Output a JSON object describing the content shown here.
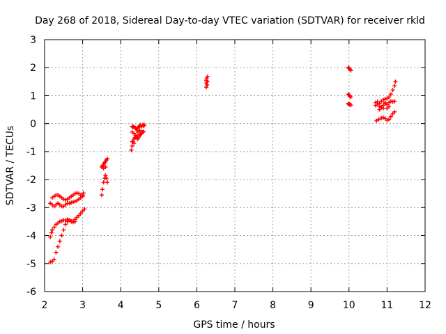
{
  "chart_data": {
    "type": "scatter",
    "title": "Day 268 of 2018, Sidereal Day-to-day VTEC variation (SDTVAR) for receiver rkld",
    "xlabel": "GPS time / hours",
    "ylabel": "SDTVAR / TECUs",
    "xlim": [
      2,
      12
    ],
    "ylim": [
      -6,
      3
    ],
    "xticks": [
      "2",
      "3",
      "4",
      "5",
      "6",
      "7",
      "8",
      "9",
      "10",
      "11",
      "12"
    ],
    "yticks": [
      "-6",
      "-5",
      "-4",
      "-3",
      "-2",
      "-1",
      "0",
      "1",
      "2",
      "3"
    ],
    "grid": true,
    "marker": "plus",
    "series": [
      {
        "name": "SDTVAR",
        "color": "#ff0000",
        "points": [
          [
            2.15,
            -2.85
          ],
          [
            2.2,
            -2.65
          ],
          [
            2.25,
            -2.6
          ],
          [
            2.3,
            -2.55
          ],
          [
            2.35,
            -2.55
          ],
          [
            2.4,
            -2.6
          ],
          [
            2.45,
            -2.65
          ],
          [
            2.5,
            -2.7
          ],
          [
            2.55,
            -2.72
          ],
          [
            2.6,
            -2.7
          ],
          [
            2.65,
            -2.65
          ],
          [
            2.7,
            -2.6
          ],
          [
            2.75,
            -2.55
          ],
          [
            2.8,
            -2.5
          ],
          [
            2.85,
            -2.48
          ],
          [
            2.9,
            -2.5
          ],
          [
            2.95,
            -2.55
          ],
          [
            3.0,
            -2.6
          ],
          [
            2.2,
            -2.9
          ],
          [
            2.25,
            -2.95
          ],
          [
            2.3,
            -2.9
          ],
          [
            2.35,
            -2.85
          ],
          [
            2.4,
            -2.9
          ],
          [
            2.45,
            -2.95
          ],
          [
            2.5,
            -2.95
          ],
          [
            2.55,
            -2.9
          ],
          [
            2.6,
            -2.85
          ],
          [
            2.65,
            -2.85
          ],
          [
            2.7,
            -2.82
          ],
          [
            2.75,
            -2.8
          ],
          [
            2.8,
            -2.78
          ],
          [
            2.85,
            -2.75
          ],
          [
            2.9,
            -2.7
          ],
          [
            2.95,
            -2.65
          ],
          [
            3.0,
            -2.55
          ],
          [
            3.02,
            -2.48
          ],
          [
            2.15,
            -4.05
          ],
          [
            2.18,
            -3.9
          ],
          [
            2.2,
            -3.8
          ],
          [
            2.25,
            -3.7
          ],
          [
            2.3,
            -3.6
          ],
          [
            2.35,
            -3.55
          ],
          [
            2.4,
            -3.5
          ],
          [
            2.45,
            -3.48
          ],
          [
            2.5,
            -3.45
          ],
          [
            2.55,
            -3.45
          ],
          [
            2.6,
            -3.42
          ],
          [
            2.65,
            -3.45
          ],
          [
            2.7,
            -3.5
          ],
          [
            2.75,
            -3.48
          ],
          [
            2.8,
            -3.42
          ],
          [
            2.85,
            -3.35
          ],
          [
            2.9,
            -3.28
          ],
          [
            2.95,
            -3.2
          ],
          [
            3.0,
            -3.12
          ],
          [
            3.05,
            -3.05
          ],
          [
            2.15,
            -4.95
          ],
          [
            2.2,
            -4.92
          ],
          [
            2.25,
            -4.85
          ],
          [
            2.3,
            -4.6
          ],
          [
            2.35,
            -4.4
          ],
          [
            2.4,
            -4.2
          ],
          [
            2.45,
            -4.0
          ],
          [
            2.5,
            -3.8
          ],
          [
            2.55,
            -3.6
          ],
          [
            2.6,
            -3.5
          ],
          [
            2.65,
            -3.45
          ],
          [
            2.7,
            -3.48
          ],
          [
            2.75,
            -3.52
          ],
          [
            2.8,
            -3.5
          ],
          [
            3.5,
            -2.55
          ],
          [
            3.52,
            -2.35
          ],
          [
            3.55,
            -2.1
          ],
          [
            3.58,
            -1.95
          ],
          [
            3.6,
            -1.85
          ],
          [
            3.62,
            -1.95
          ],
          [
            3.65,
            -2.1
          ],
          [
            3.5,
            -1.55
          ],
          [
            3.52,
            -1.5
          ],
          [
            3.55,
            -1.45
          ],
          [
            3.58,
            -1.4
          ],
          [
            3.6,
            -1.35
          ],
          [
            3.62,
            -1.3
          ],
          [
            3.65,
            -1.25
          ],
          [
            3.55,
            -1.6
          ],
          [
            3.6,
            -1.55
          ],
          [
            4.28,
            -0.95
          ],
          [
            4.3,
            -0.8
          ],
          [
            4.32,
            -0.65
          ],
          [
            4.35,
            -0.55
          ],
          [
            4.38,
            -0.5
          ],
          [
            4.4,
            -0.45
          ],
          [
            4.42,
            -0.5
          ],
          [
            4.45,
            -0.55
          ],
          [
            4.48,
            -0.48
          ],
          [
            4.5,
            -0.4
          ],
          [
            4.52,
            -0.38
          ],
          [
            4.55,
            -0.35
          ],
          [
            4.58,
            -0.3
          ],
          [
            4.6,
            -0.28
          ],
          [
            4.3,
            -0.1
          ],
          [
            4.32,
            -0.12
          ],
          [
            4.35,
            -0.1
          ],
          [
            4.38,
            -0.15
          ],
          [
            4.4,
            -0.18
          ],
          [
            4.42,
            -0.2
          ],
          [
            4.45,
            -0.15
          ],
          [
            4.48,
            -0.12
          ],
          [
            4.5,
            -0.08
          ],
          [
            4.52,
            -0.05
          ],
          [
            4.55,
            -0.1
          ],
          [
            4.58,
            -0.05
          ],
          [
            4.6,
            -0.08
          ],
          [
            4.62,
            -0.05
          ],
          [
            4.3,
            -0.3
          ],
          [
            4.35,
            -0.35
          ],
          [
            4.4,
            -0.42
          ],
          [
            4.45,
            -0.3
          ],
          [
            4.5,
            -0.25
          ],
          [
            4.55,
            -0.3
          ],
          [
            4.3,
            -0.65
          ],
          [
            4.35,
            -0.7
          ],
          [
            6.25,
            1.3
          ],
          [
            6.25,
            1.45
          ],
          [
            6.25,
            1.55
          ],
          [
            6.26,
            1.62
          ],
          [
            6.28,
            1.68
          ],
          [
            6.28,
            1.5
          ],
          [
            6.27,
            1.38
          ],
          [
            9.98,
            2.0
          ],
          [
            10.0,
            1.98
          ],
          [
            10.02,
            1.95
          ],
          [
            10.05,
            1.9
          ],
          [
            9.98,
            1.05
          ],
          [
            10.0,
            1.02
          ],
          [
            10.02,
            0.98
          ],
          [
            10.05,
            0.95
          ],
          [
            9.98,
            0.72
          ],
          [
            10.0,
            0.68
          ],
          [
            10.02,
            0.7
          ],
          [
            10.05,
            0.66
          ],
          [
            10.7,
            0.65
          ],
          [
            10.75,
            0.7
          ],
          [
            10.8,
            0.62
          ],
          [
            10.85,
            0.58
          ],
          [
            10.9,
            0.65
          ],
          [
            10.95,
            0.72
          ],
          [
            11.0,
            0.68
          ],
          [
            11.05,
            0.75
          ],
          [
            11.1,
            0.8
          ],
          [
            11.15,
            0.78
          ],
          [
            11.2,
            0.8
          ],
          [
            10.7,
            0.75
          ],
          [
            10.75,
            0.78
          ],
          [
            10.8,
            0.72
          ],
          [
            10.85,
            0.8
          ],
          [
            10.9,
            0.85
          ],
          [
            10.95,
            0.88
          ],
          [
            11.0,
            0.9
          ],
          [
            11.05,
            0.95
          ],
          [
            11.1,
            1.05
          ],
          [
            11.15,
            1.2
          ],
          [
            11.2,
            1.35
          ],
          [
            11.22,
            1.5
          ],
          [
            10.72,
            0.1
          ],
          [
            10.78,
            0.15
          ],
          [
            10.85,
            0.2
          ],
          [
            10.9,
            0.22
          ],
          [
            10.95,
            0.18
          ],
          [
            11.0,
            0.12
          ],
          [
            11.05,
            0.15
          ],
          [
            11.1,
            0.25
          ],
          [
            11.15,
            0.35
          ],
          [
            11.2,
            0.42
          ],
          [
            10.8,
            0.5
          ],
          [
            10.9,
            0.55
          ],
          [
            11.0,
            0.55
          ],
          [
            10.95,
            0.75
          ],
          [
            11.05,
            0.6
          ]
        ]
      }
    ]
  }
}
